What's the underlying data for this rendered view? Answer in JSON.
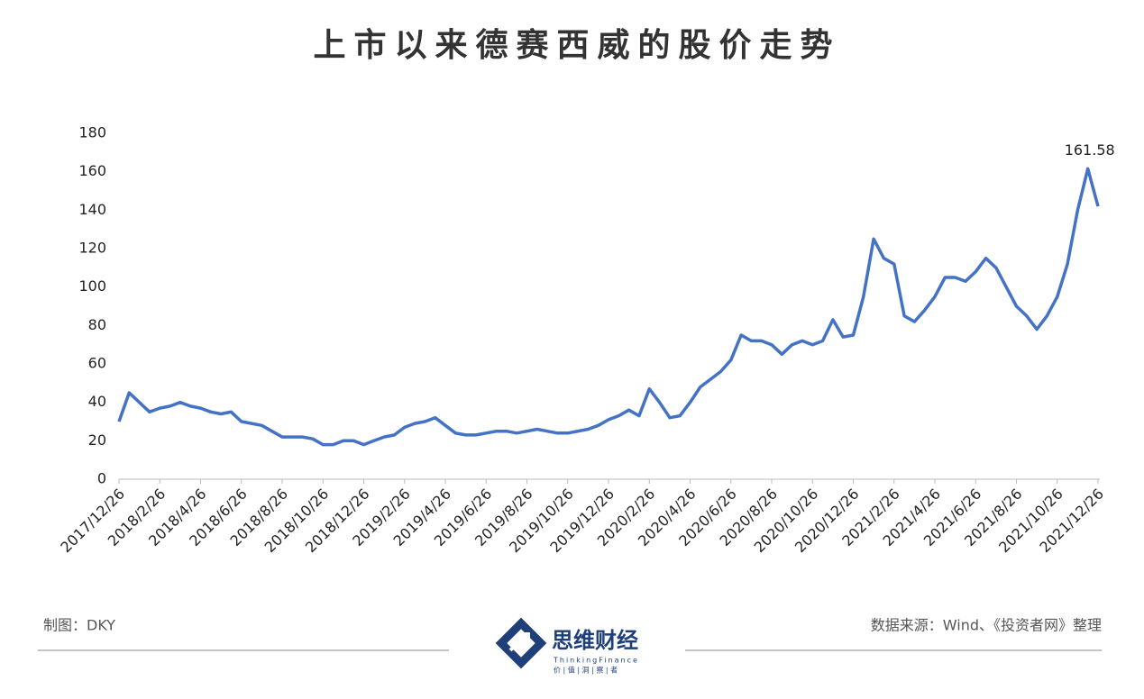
{
  "chart_data": {
    "type": "line",
    "title": "上市以来德赛西威的股价走势",
    "categories": [
      "2017/12/26",
      null,
      null,
      null,
      "2018/2/26",
      null,
      null,
      null,
      "2018/4/26",
      null,
      null,
      null,
      "2018/6/26",
      null,
      null,
      null,
      "2018/8/26",
      null,
      null,
      null,
      "2018/10/26",
      null,
      null,
      null,
      "2018/12/26",
      null,
      null,
      null,
      "2019/2/26",
      null,
      null,
      null,
      "2019/4/26",
      null,
      null,
      null,
      "2019/6/26",
      null,
      null,
      null,
      "2019/8/26",
      null,
      null,
      null,
      "2019/10/26",
      null,
      null,
      null,
      "2019/12/26",
      null,
      null,
      null,
      "2020/2/26",
      null,
      null,
      null,
      "2020/4/26",
      null,
      null,
      null,
      "2020/6/26",
      null,
      null,
      null,
      "2020/8/26",
      null,
      null,
      null,
      "2020/10/26",
      null,
      null,
      null,
      "2020/12/26",
      null,
      null,
      null,
      "2021/2/26",
      null,
      null,
      null,
      "2021/4/26",
      null,
      null,
      null,
      "2021/6/26",
      null,
      null,
      null,
      "2021/8/26",
      null,
      null,
      null,
      "2021/10/26",
      null,
      null,
      null,
      "2021/12/26"
    ],
    "values": [
      30,
      45,
      40,
      35,
      37,
      38,
      40,
      38,
      37,
      35,
      34,
      35,
      30,
      29,
      28,
      25,
      22,
      22,
      22,
      21,
      18,
      18,
      20,
      20,
      18,
      20,
      22,
      23,
      27,
      29,
      30,
      32,
      28,
      24,
      23,
      23,
      24,
      25,
      25,
      24,
      25,
      26,
      25,
      24,
      24,
      25,
      26,
      28,
      31,
      33,
      36,
      33,
      47,
      40,
      32,
      33,
      40,
      48,
      52,
      56,
      62,
      75,
      72,
      72,
      70,
      65,
      70,
      72,
      70,
      72,
      83,
      74,
      75,
      95,
      125,
      115,
      112,
      85,
      82,
      88,
      95,
      105,
      105,
      103,
      108,
      115,
      110,
      100,
      90,
      85,
      78,
      85,
      95,
      112,
      140,
      161.58,
      142
    ],
    "color": "#4472c4",
    "ylim": [
      0,
      180
    ],
    "yticks": [
      0,
      20,
      40,
      60,
      80,
      100,
      120,
      140,
      160,
      180
    ],
    "grid": false
  },
  "footer": {
    "maker": "制图：DKY",
    "source": "数据来源：Wind、《投资者网》整理",
    "logo": "思维财经",
    "logo_en": "ThinkingFinance",
    "logo_slogan": "价 | 值 | 洞 | 察 | 者"
  }
}
